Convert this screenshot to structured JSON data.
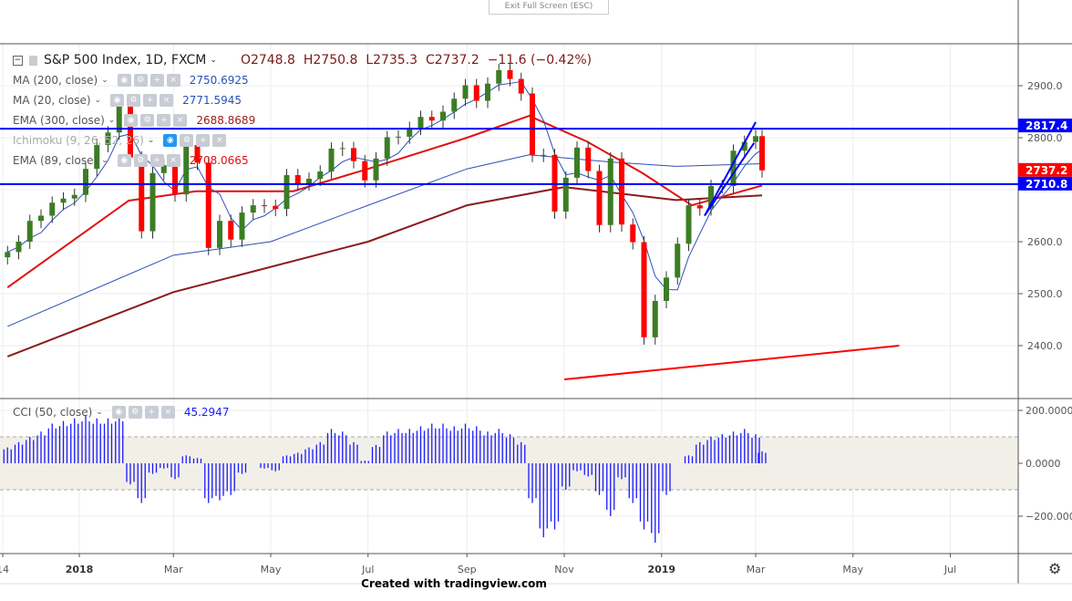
{
  "header": {
    "exit_fullscreen": "Exit Full Screen (ESC)",
    "symbol": "S&P 500 Index, 1D, FXCM",
    "open": "O2748.8",
    "high": "H2750.8",
    "low": "L2735.3",
    "close": "C2737.2",
    "change": "−11.6 (−0.42%)"
  },
  "indicators": [
    {
      "label": "MA (200, close)",
      "value": "2750.6925",
      "color": "#2a50b8"
    },
    {
      "label": "MA (20, close)",
      "value": "2771.5945",
      "color": "#2a50b8"
    },
    {
      "label": "EMA (300, close)",
      "value": "2688.8689",
      "color": "#9b1c1c"
    },
    {
      "label": "Ichimoku (9, 26, 52, 26)",
      "value": "",
      "color": "#aaaaaa"
    },
    {
      "label": "EMA (89, close)",
      "value": "2708.0665",
      "color": "#e01010"
    }
  ],
  "oscillator": {
    "label": "CCI (50, close)",
    "value": "45.2947",
    "color": "#1a1aff"
  },
  "footer": {
    "credit": "Created with tradingview.com"
  },
  "colors": {
    "up": "#3b7d23",
    "down": "#ff0000",
    "level": "#0000ff",
    "last_price": "#ff0000",
    "band": "#f2efe9"
  },
  "chart_data": {
    "type": "candlestick",
    "ylim": [
      2330,
      2960
    ],
    "y_ticks": [
      "2900.0",
      "2800.0",
      "2600.0",
      "2500.0",
      "2400.0"
    ],
    "y_tick_values": [
      2900,
      2800,
      2600,
      2500,
      2400
    ],
    "x_ticks": [
      {
        "label": "14",
        "date": "2017-11-14"
      },
      {
        "label": "2018",
        "date": "2018-01-01",
        "bold": true
      },
      {
        "label": "Mar",
        "date": "2018-03-01"
      },
      {
        "label": "May",
        "date": "2018-05-01"
      },
      {
        "label": "Jul",
        "date": "2018-07-01"
      },
      {
        "label": "Sep",
        "date": "2018-09-01"
      },
      {
        "label": "Nov",
        "date": "2018-11-01"
      },
      {
        "label": "2019",
        "date": "2019-01-01",
        "bold": true
      },
      {
        "label": "Mar",
        "date": "2019-03-01"
      },
      {
        "label": "May",
        "date": "2019-05-01"
      },
      {
        "label": "Jul",
        "date": "2019-07-01"
      }
    ],
    "dates": [
      "2017-11-17",
      "2017-11-24",
      "2017-12-01",
      "2017-12-08",
      "2017-12-15",
      "2017-12-22",
      "2017-12-29",
      "2018-01-05",
      "2018-01-12",
      "2018-01-19",
      "2018-01-26",
      "2018-02-02",
      "2018-02-09",
      "2018-02-16",
      "2018-02-23",
      "2018-03-02",
      "2018-03-09",
      "2018-03-16",
      "2018-03-23",
      "2018-03-30",
      "2018-04-06",
      "2018-04-13",
      "2018-04-20",
      "2018-04-27",
      "2018-05-04",
      "2018-05-11",
      "2018-05-18",
      "2018-05-25",
      "2018-06-01",
      "2018-06-08",
      "2018-06-15",
      "2018-06-22",
      "2018-06-29",
      "2018-07-06",
      "2018-07-13",
      "2018-07-20",
      "2018-07-27",
      "2018-08-03",
      "2018-08-10",
      "2018-08-17",
      "2018-08-24",
      "2018-08-31",
      "2018-09-07",
      "2018-09-14",
      "2018-09-21",
      "2018-09-28",
      "2018-10-05",
      "2018-10-12",
      "2018-10-19",
      "2018-10-26",
      "2018-11-02",
      "2018-11-09",
      "2018-11-16",
      "2018-11-23",
      "2018-11-30",
      "2018-12-07",
      "2018-12-14",
      "2018-12-21",
      "2018-12-28",
      "2019-01-04",
      "2019-01-11",
      "2019-01-18",
      "2019-01-25",
      "2019-02-01",
      "2019-02-08",
      "2019-02-15",
      "2019-02-22",
      "2019-03-01",
      "2019-03-05"
    ],
    "close": [
      2580,
      2600,
      2640,
      2650,
      2675,
      2683,
      2690,
      2740,
      2786,
      2810,
      2872,
      2762,
      2620,
      2732,
      2747,
      2691,
      2786,
      2752,
      2588,
      2640,
      2604,
      2656,
      2670,
      2669,
      2663,
      2728,
      2712,
      2721,
      2735,
      2779,
      2780,
      2755,
      2718,
      2760,
      2801,
      2802,
      2819,
      2840,
      2833,
      2850,
      2875,
      2901,
      2871,
      2904,
      2930,
      2913,
      2885,
      2767,
      2767,
      2658,
      2723,
      2781,
      2736,
      2632,
      2760,
      2633,
      2599,
      2416,
      2486,
      2531,
      2596,
      2670,
      2664,
      2707,
      2707,
      2775,
      2792,
      2803,
      2737.2
    ],
    "cci": [
      60,
      80,
      100,
      120,
      150,
      160,
      170,
      180,
      170,
      170,
      180,
      -80,
      -150,
      -40,
      -20,
      -60,
      30,
      20,
      -150,
      -140,
      -120,
      -40,
      0,
      -20,
      -30,
      30,
      40,
      60,
      80,
      130,
      120,
      80,
      10,
      70,
      120,
      130,
      130,
      140,
      150,
      150,
      140,
      150,
      140,
      120,
      130,
      110,
      80,
      -150,
      -280,
      -250,
      -100,
      -30,
      -50,
      -120,
      -200,
      -60,
      -150,
      -250,
      -300,
      -120,
      0,
      30,
      80,
      100,
      110,
      120,
      130,
      110,
      45
    ],
    "cci_ylim": [
      -340,
      200
    ],
    "cci_ticks": [
      "200.0000",
      "0.0000",
      "−200.0000"
    ],
    "cci_tick_values": [
      200,
      0,
      -200
    ],
    "cci_band": [
      -100,
      100
    ],
    "overlays": [
      {
        "name": "MA (200, close)",
        "color": "#2a50b8",
        "points": [
          [
            "2017-11-17",
            2437
          ],
          [
            "2018-03-01",
            2574
          ],
          [
            "2018-05-01",
            2600
          ],
          [
            "2018-07-01",
            2670
          ],
          [
            "2018-09-01",
            2740
          ],
          [
            "2018-10-10",
            2767
          ],
          [
            "2018-12-01",
            2753
          ],
          [
            "2019-01-10",
            2745
          ],
          [
            "2019-03-05",
            2750
          ]
        ]
      },
      {
        "name": "EMA (300, close)",
        "color": "#8b1a1a",
        "points": [
          [
            "2017-11-17",
            2379
          ],
          [
            "2018-03-01",
            2503
          ],
          [
            "2018-07-01",
            2600
          ],
          [
            "2018-09-01",
            2670
          ],
          [
            "2018-11-01",
            2705
          ],
          [
            "2019-01-10",
            2680
          ],
          [
            "2019-03-05",
            2689
          ]
        ]
      },
      {
        "name": "EMA (89, close)",
        "color": "#e01010",
        "points": [
          [
            "2017-11-17",
            2512
          ],
          [
            "2018-02-01",
            2679
          ],
          [
            "2018-03-15",
            2697
          ],
          [
            "2018-05-15",
            2697
          ],
          [
            "2018-07-01",
            2740
          ],
          [
            "2018-09-01",
            2800
          ],
          [
            "2018-10-10",
            2842
          ],
          [
            "2018-11-15",
            2793
          ],
          [
            "2018-12-20",
            2732
          ],
          [
            "2019-01-20",
            2670
          ],
          [
            "2019-03-05",
            2708
          ]
        ]
      }
    ],
    "levels": [
      {
        "value": 2817.4,
        "label": "2817.4",
        "color": "#0000ff"
      },
      {
        "value": 2710.8,
        "label": "2710.8",
        "color": "#0000ff"
      }
    ],
    "last_price": {
      "value": 2737.2,
      "label": "2737.2"
    },
    "trendlines": [
      {
        "color": "#ff0000",
        "from": [
          "2018-11-01",
          2335
        ],
        "to": [
          "2019-05-30",
          2400
        ]
      },
      {
        "color": "#0000ff",
        "from": [
          "2019-01-28",
          2650
        ],
        "to": [
          "2019-03-01",
          2830
        ]
      },
      {
        "color": "#0000ff",
        "from": [
          "2019-01-28",
          2650
        ],
        "to": [
          "2019-02-28",
          2790
        ]
      }
    ]
  }
}
